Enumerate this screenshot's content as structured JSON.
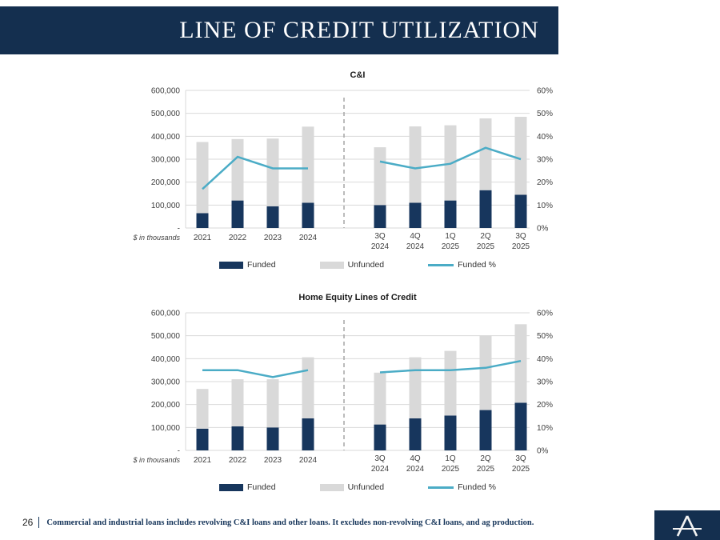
{
  "slide": {
    "title": "LINE OF CREDIT UTILIZATION",
    "page_number": "26",
    "footnote": "Commercial and industrial loans includes revolving C&I loans and other loans. It excludes non-revolving C&I loans, and ag production.",
    "logo_letter": "A"
  },
  "colors": {
    "navy": "#142f4f",
    "funded": "#17365d",
    "unfunded": "#d9d9d9",
    "line": "#4bacc6",
    "grid": "#d9d9d9",
    "divider": "#a6a6a6"
  },
  "chart_data": [
    {
      "type": "combo-stacked-bar-line",
      "title": "C&I",
      "unit_label": "$ in thousands",
      "categories": [
        "2021",
        "2022",
        "2023",
        "2024",
        "3Q 2024",
        "4Q 2024",
        "1Q 2025",
        "2Q 2025",
        "3Q 2025"
      ],
      "divider_after_index": 3,
      "left_axis": {
        "min": 0,
        "max": 600000,
        "tick_labels": [
          "600,000",
          "500,000",
          "400,000",
          "300,000",
          "200,000",
          "100,000",
          "-"
        ]
      },
      "right_axis": {
        "min": 0,
        "max": 60,
        "tick_labels": [
          "60%",
          "50%",
          "40%",
          "30%",
          "20%",
          "10%",
          "0%"
        ]
      },
      "legend_position": "bottom",
      "grid": true,
      "series": [
        {
          "name": "Funded",
          "type": "bar",
          "color_key": "funded",
          "values": [
            65000,
            120000,
            95000,
            110000,
            100000,
            110000,
            120000,
            165000,
            145000
          ]
        },
        {
          "name": "Unfunded",
          "type": "bar",
          "color_key": "unfunded",
          "values": [
            310000,
            268000,
            295000,
            332000,
            252000,
            333000,
            328000,
            313000,
            340000
          ]
        },
        {
          "name": "Funded %",
          "type": "line",
          "color_key": "line",
          "axis": "right",
          "values": [
            17,
            31,
            26,
            26,
            29,
            26,
            28,
            35,
            30
          ]
        }
      ]
    },
    {
      "type": "combo-stacked-bar-line",
      "title": "Home Equity Lines of Credit",
      "unit_label": "$ in thousands",
      "categories": [
        "2021",
        "2022",
        "2023",
        "2024",
        "3Q 2024",
        "4Q 2024",
        "1Q 2025",
        "2Q 2025",
        "3Q 2025"
      ],
      "divider_after_index": 3,
      "left_axis": {
        "min": 0,
        "max": 600000,
        "tick_labels": [
          "600,000",
          "500,000",
          "400,000",
          "300,000",
          "200,000",
          "100,000",
          "-"
        ]
      },
      "right_axis": {
        "min": 0,
        "max": 60,
        "tick_labels": [
          "60%",
          "50%",
          "40%",
          "30%",
          "20%",
          "10%",
          "0%"
        ]
      },
      "legend_position": "bottom",
      "grid": true,
      "series": [
        {
          "name": "Funded",
          "type": "bar",
          "color_key": "funded",
          "values": [
            95000,
            105000,
            100000,
            140000,
            113000,
            140000,
            152000,
            176000,
            208000
          ]
        },
        {
          "name": "Unfunded",
          "type": "bar",
          "color_key": "unfunded",
          "values": [
            173000,
            205000,
            210000,
            266000,
            226000,
            266000,
            282000,
            325000,
            342000
          ]
        },
        {
          "name": "Funded %",
          "type": "line",
          "color_key": "line",
          "axis": "right",
          "values": [
            35,
            35,
            32,
            35,
            34,
            35,
            35,
            36,
            39
          ]
        }
      ]
    }
  ]
}
